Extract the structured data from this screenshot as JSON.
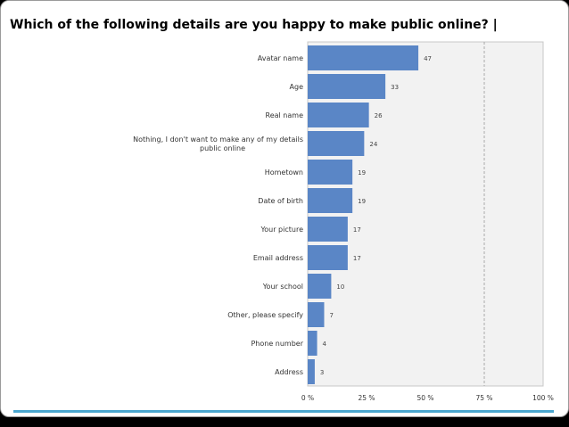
{
  "title": "Which of the following details are you happy to make public online? |",
  "colors": {
    "bar": "#5a86c6",
    "plot_bg": "#f2f2f2",
    "accent_rule": "#4aa6cf"
  },
  "chart_data": {
    "type": "bar",
    "orientation": "horizontal",
    "title": "Which of the following details are you happy to make public online? |",
    "categories": [
      "Avatar name",
      "Age",
      "Real name",
      "Nothing, I don't want to make any of my details public online",
      "Hometown",
      "Date of birth",
      "Your picture",
      "Email address",
      "Your school",
      "Other, please specify",
      "Phone number",
      "Address"
    ],
    "values": [
      47,
      33,
      26,
      24,
      19,
      19,
      17,
      17,
      10,
      7,
      4,
      3
    ],
    "xlim": [
      0,
      100
    ],
    "xticks": [
      0,
      25,
      50,
      75,
      100
    ],
    "xtick_labels": [
      "0 %",
      "25 %",
      "50 %",
      "75 %",
      "100 %"
    ],
    "grid": "vertical dashed at 75 %",
    "xlabel": "",
    "ylabel": ""
  }
}
